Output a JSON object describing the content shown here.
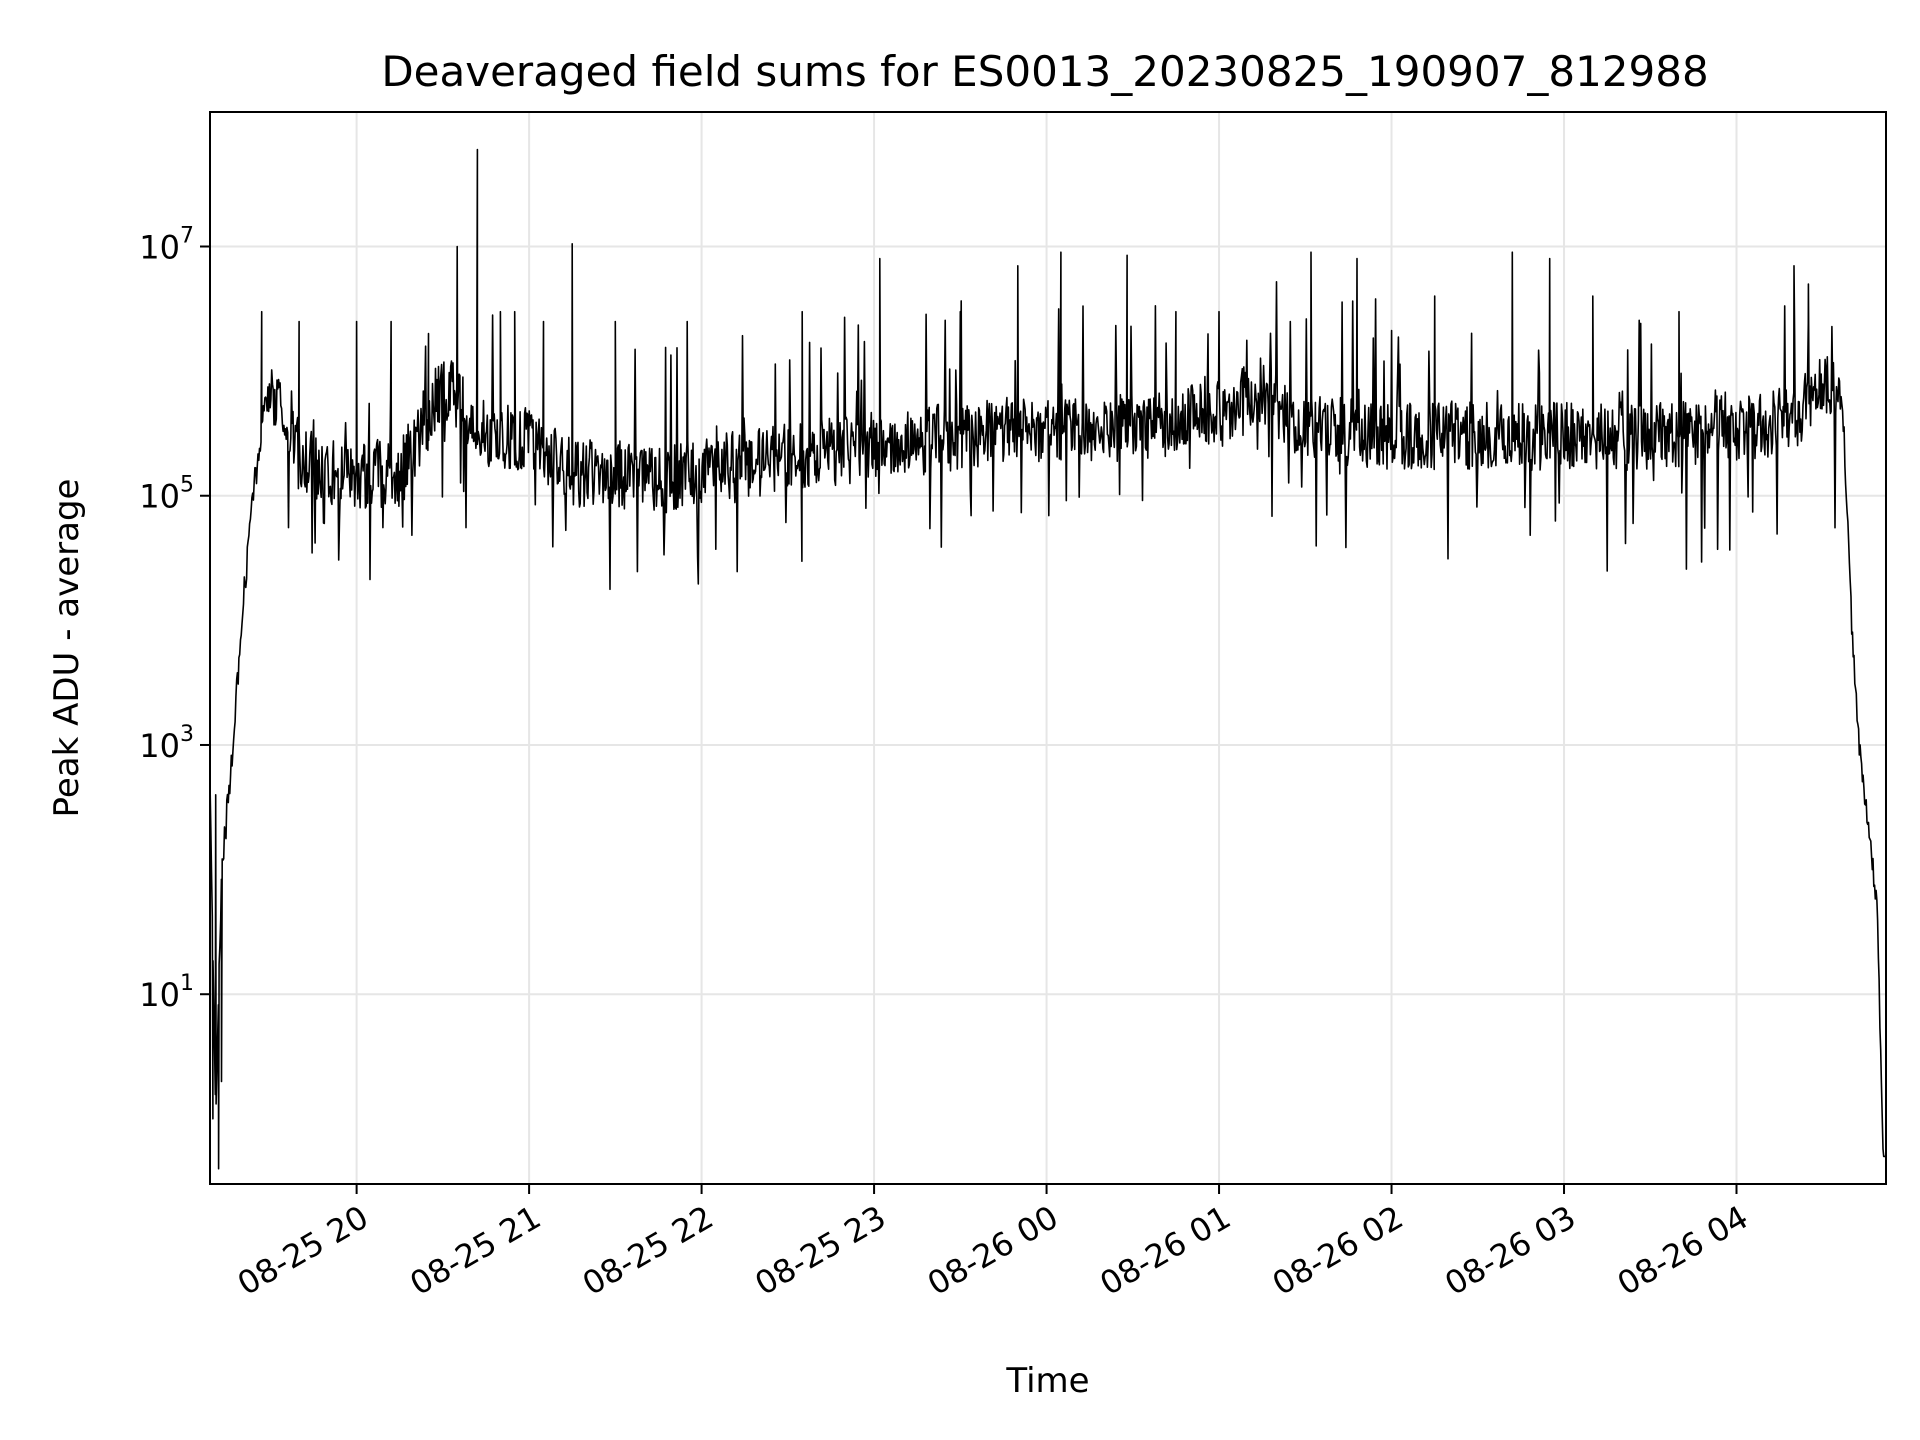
{
  "chart_data": {
    "type": "line",
    "title": "Deaveraged field sums for ES0013_20230825_190907_812988",
    "xlabel": "Time",
    "ylabel": "Peak ADU - average",
    "yscale": "log",
    "x_start": "2023-08-25 19:09:07",
    "xlim": [
      "2023-08-25 19:09",
      "2023-08-26 04:52"
    ],
    "ylim": [
      0.3,
      120000000.0
    ],
    "grid": true,
    "line_color": "#000000",
    "x_ticks": [
      {
        "t": "2023-08-25 20:00",
        "label": "08-25 20"
      },
      {
        "t": "2023-08-25 21:00",
        "label": "08-25 21"
      },
      {
        "t": "2023-08-25 22:00",
        "label": "08-25 22"
      },
      {
        "t": "2023-08-25 23:00",
        "label": "08-25 23"
      },
      {
        "t": "2023-08-26 00:00",
        "label": "08-26 00"
      },
      {
        "t": "2023-08-26 01:00",
        "label": "08-26 01"
      },
      {
        "t": "2023-08-26 02:00",
        "label": "08-26 02"
      },
      {
        "t": "2023-08-26 03:00",
        "label": "08-26 03"
      },
      {
        "t": "2023-08-26 04:00",
        "label": "08-26 04"
      }
    ],
    "y_ticks": [
      {
        "value": 10,
        "base": "10",
        "exp": "1"
      },
      {
        "value": 1000,
        "base": "10",
        "exp": "3"
      },
      {
        "value": 100000,
        "base": "10",
        "exp": "5"
      },
      {
        "value": 10000000,
        "base": "10",
        "exp": "7"
      }
    ],
    "series": [
      {
        "x": [
          "2023-08-25 19:09",
          "2023-08-25 19:11",
          "2023-08-25 19:13",
          "2023-08-25 19:15",
          "2023-08-25 19:17",
          "2023-08-25 19:20",
          "2023-08-25 19:24",
          "2023-08-25 19:28",
          "2023-08-25 19:31",
          "2023-08-25 19:34",
          "2023-08-25 19:40",
          "2023-08-25 19:50",
          "2023-08-25 20:00",
          "2023-08-25 20:15",
          "2023-08-25 20:30",
          "2023-08-25 20:45",
          "2023-08-25 21:00",
          "2023-08-25 21:15",
          "2023-08-25 21:30",
          "2023-08-25 21:45",
          "2023-08-25 22:00",
          "2023-08-25 22:30",
          "2023-08-25 23:00",
          "2023-08-25 23:30",
          "2023-08-26 00:00",
          "2023-08-26 00:30",
          "2023-08-26 01:00",
          "2023-08-26 01:15",
          "2023-08-26 01:30",
          "2023-08-26 02:00",
          "2023-08-26 02:30",
          "2023-08-26 03:00",
          "2023-08-26 03:30",
          "2023-08-26 04:00",
          "2023-08-26 04:20",
          "2023-08-26 04:32",
          "2023-08-26 04:37",
          "2023-08-26 04:40",
          "2023-08-26 04:43",
          "2023-08-26 04:46",
          "2023-08-26 04:49",
          "2023-08-26 04:51"
        ],
        "y": [
          500,
          1,
          100,
          300,
          1000,
          10000,
          100000,
          500000,
          700000,
          500000,
          200000,
          150000,
          150000,
          150000,
          800000,
          300000,
          300000,
          150000,
          150000,
          130000,
          160000,
          200000,
          250000,
          300000,
          350000,
          350000,
          450000,
          700000,
          350000,
          300000,
          300000,
          300000,
          300000,
          350000,
          400000,
          900000,
          500000,
          10000,
          800,
          200,
          50,
          0.5
        ]
      }
    ],
    "spikes": [
      {
        "t": "2023-08-25 19:27",
        "y": 3000000
      },
      {
        "t": "2023-08-25 19:40",
        "y": 2500000
      },
      {
        "t": "2023-08-25 20:00",
        "y": 2500000
      },
      {
        "t": "2023-08-25 20:12",
        "y": 2500000
      },
      {
        "t": "2023-08-25 20:25",
        "y": 2000000
      },
      {
        "t": "2023-08-25 20:35",
        "y": 10000000
      },
      {
        "t": "2023-08-25 20:42",
        "y": 60000000
      },
      {
        "t": "2023-08-25 20:50",
        "y": 3000000
      },
      {
        "t": "2023-08-25 20:55",
        "y": 3000000
      },
      {
        "t": "2023-08-25 21:05",
        "y": 2500000
      },
      {
        "t": "2023-08-25 21:15",
        "y": 10500000
      },
      {
        "t": "2023-08-25 21:30",
        "y": 2500000
      },
      {
        "t": "2023-08-25 21:55",
        "y": 2500000
      },
      {
        "t": "2023-08-25 22:35",
        "y": 3000000
      },
      {
        "t": "2023-08-25 23:02",
        "y": 8000000
      },
      {
        "t": "2023-08-25 23:30",
        "y": 3000000
      },
      {
        "t": "2023-08-25 23:50",
        "y": 7000000
      },
      {
        "t": "2023-08-26 00:05",
        "y": 9000000
      },
      {
        "t": "2023-08-26 00:28",
        "y": 8500000
      },
      {
        "t": "2023-08-26 00:45",
        "y": 3000000
      },
      {
        "t": "2023-08-26 01:00",
        "y": 3000000
      },
      {
        "t": "2023-08-26 01:32",
        "y": 9000000
      },
      {
        "t": "2023-08-26 01:48",
        "y": 8000000
      },
      {
        "t": "2023-08-26 02:15",
        "y": 4000000
      },
      {
        "t": "2023-08-26 02:42",
        "y": 9000000
      },
      {
        "t": "2023-08-26 02:55",
        "y": 8000000
      },
      {
        "t": "2023-08-26 03:10",
        "y": 4000000
      },
      {
        "t": "2023-08-26 03:40",
        "y": 3000000
      },
      {
        "t": "2023-08-26 04:20",
        "y": 7000000
      },
      {
        "t": "2023-08-26 04:25",
        "y": 5000000
      }
    ]
  }
}
